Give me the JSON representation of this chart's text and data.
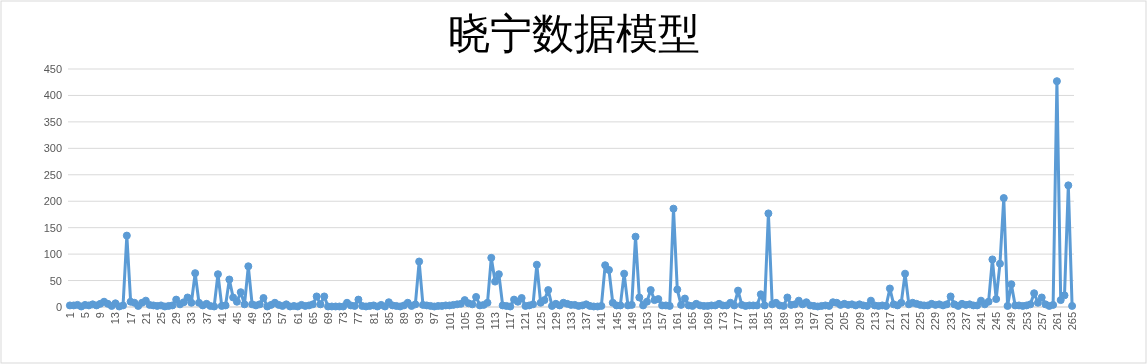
{
  "chart_data": {
    "type": "line",
    "title": "晓宁数据模型",
    "color": "#5b9bd5",
    "marker": "circle",
    "grid": "y",
    "ylim": [
      0,
      450
    ],
    "yticks": [
      0,
      50,
      100,
      150,
      200,
      250,
      300,
      350,
      400,
      450
    ],
    "categories": [
      "1",
      null,
      null,
      null,
      "5",
      null,
      null,
      null,
      "9",
      null,
      null,
      null,
      "13",
      null,
      null,
      null,
      "17",
      null,
      null,
      null,
      "21",
      null,
      null,
      null,
      "25",
      null,
      null,
      null,
      "29",
      null,
      null,
      null,
      "33",
      null,
      null,
      null,
      "37",
      null,
      null,
      null,
      "41",
      null,
      null,
      null,
      "45",
      null,
      null,
      null,
      "49",
      null,
      null,
      null,
      "53",
      null,
      null,
      null,
      "57",
      null,
      null,
      null,
      "61",
      null,
      null,
      null,
      "65",
      null,
      null,
      null,
      "69",
      null,
      null,
      null,
      "73",
      null,
      null,
      null,
      "77",
      null,
      null,
      null,
      "81",
      null,
      null,
      null,
      "85",
      null,
      null,
      null,
      "89",
      null,
      null,
      null,
      "93",
      null,
      null,
      null,
      "97",
      null,
      null,
      null,
      "101",
      null,
      null,
      null,
      "105",
      null,
      null,
      null,
      "109",
      null,
      null,
      null,
      "113",
      null,
      null,
      null,
      "117",
      null,
      null,
      null,
      "121",
      null,
      null,
      null,
      "125",
      null,
      null,
      null,
      "129",
      null,
      null,
      null,
      "133",
      null,
      null,
      null,
      "137",
      null,
      null,
      null,
      "141",
      null,
      null,
      null,
      "145",
      null,
      null,
      null,
      "149",
      null,
      null,
      null,
      "153",
      null,
      null,
      null,
      "157",
      null,
      null,
      null,
      "161",
      null,
      null,
      null,
      "165",
      null,
      null,
      null,
      "169",
      null,
      null,
      null,
      "173",
      null,
      null,
      null,
      "177",
      null,
      null,
      null,
      "181",
      null,
      null,
      null,
      "185",
      null,
      null,
      null,
      "189",
      null,
      null,
      null,
      "193",
      null,
      null,
      null,
      "197",
      null,
      null,
      null,
      "201",
      null,
      null,
      null,
      "205",
      null,
      null,
      null,
      "209",
      null,
      null,
      null,
      "213",
      null,
      null,
      null,
      "217",
      null,
      null,
      null,
      "221",
      null,
      null,
      null,
      "225",
      null,
      null,
      null,
      "229",
      null,
      null,
      null,
      "233",
      null,
      null,
      null,
      "237",
      null,
      null,
      null,
      "241",
      null,
      null,
      null,
      "245",
      null,
      null,
      null,
      "249",
      null,
      null,
      null,
      "253",
      null,
      null,
      null,
      "257",
      null,
      null,
      null,
      "261",
      null,
      null,
      null,
      "265"
    ],
    "values": [
      3,
      3,
      4,
      1,
      4,
      3,
      5,
      3,
      6,
      10,
      6,
      2,
      7,
      1,
      3,
      135,
      10,
      8,
      2,
      8,
      12,
      4,
      3,
      2,
      3,
      1,
      2,
      3,
      14,
      5,
      9,
      18,
      8,
      64,
      8,
      3,
      6,
      2,
      1,
      62,
      2,
      3,
      52,
      18,
      10,
      28,
      5,
      77,
      5,
      3,
      5,
      17,
      1,
      4,
      8,
      4,
      2,
      5,
      1,
      2,
      1,
      4,
      2,
      3,
      5,
      20,
      5,
      20,
      1,
      1,
      1,
      1,
      1,
      8,
      3,
      2,
      14,
      2,
      1,
      2,
      3,
      1,
      4,
      1,
      9,
      3,
      2,
      1,
      3,
      8,
      2,
      5,
      86,
      4,
      3,
      2,
      1,
      2,
      2,
      3,
      3,
      4,
      5,
      6,
      13,
      7,
      5,
      19,
      3,
      4,
      8,
      93,
      48,
      62,
      3,
      2,
      1,
      14,
      10,
      17,
      2,
      3,
      5,
      80,
      8,
      13,
      32,
      2,
      6,
      3,
      8,
      6,
      4,
      4,
      2,
      3,
      5,
      2,
      1,
      1,
      2,
      79,
      70,
      8,
      3,
      3,
      63,
      3,
      4,
      133,
      18,
      3,
      10,
      32,
      13,
      15,
      3,
      3,
      2,
      186,
      33,
      4,
      16,
      3,
      2,
      6,
      3,
      2,
      2,
      3,
      3,
      6,
      3,
      3,
      8,
      3,
      31,
      4,
      2,
      3,
      3,
      3,
      24,
      3,
      177,
      5,
      8,
      3,
      2,
      18,
      4,
      5,
      12,
      5,
      9,
      3,
      2,
      1,
      2,
      3,
      2,
      9,
      8,
      4,
      6,
      4,
      5,
      3,
      5,
      3,
      2,
      12,
      3,
      2,
      3,
      2,
      35,
      5,
      3,
      8,
      63,
      5,
      8,
      6,
      4,
      3,
      3,
      6,
      4,
      5,
      3,
      5,
      20,
      5,
      2,
      6,
      4,
      5,
      3,
      3,
      12,
      5,
      10,
      90,
      15,
      82,
      206,
      2,
      43,
      3,
      3,
      2,
      3,
      5,
      26,
      8,
      18,
      5,
      2,
      4,
      427,
      13,
      22,
      230,
      2
    ]
  }
}
